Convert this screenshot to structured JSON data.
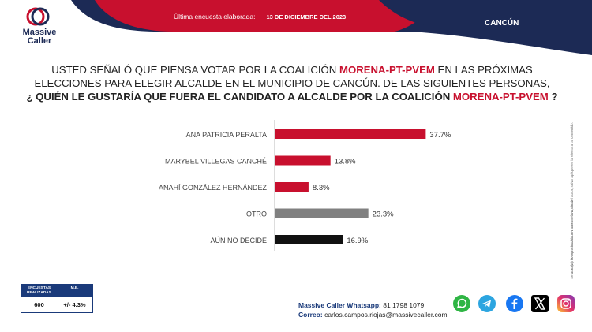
{
  "header": {
    "logo_line1": "Massive",
    "logo_line2": "Caller",
    "survey_label": "Última encuesta elaborada:",
    "survey_date": "13 DE DICIEMBRE DEL 2023",
    "city": "CANCÚN"
  },
  "question": {
    "line1_a": "USTED SEÑALÓ QUE PIENSA VOTAR POR LA COALICIÓN ",
    "line1_b": "MORENA-PT-PVEM",
    "line1_c": " EN LAS PRÓXIMAS",
    "line2": "ELECCIONES PARA ELEGIR ALCALDE EN EL MUNICIPIO DE CANCÚN. DE LAS SIGUIENTES PERSONAS,",
    "line3_a": "¿ QUIÉN LE GUSTARÍA QUE FUERA EL CANDIDATO A ALCALDE POR LA COALICIÓN ",
    "line3_b": "MORENA-PT-PVEM",
    "line3_c": " ?"
  },
  "side_note": {
    "line1": "D.R. (C) MASSIVE CALLER S.A DE C.V., 2023",
    "line2": "Se autoriza la reproducción sin hacer referencia del autor, salvo aplique en la electoral al contenido."
  },
  "chart_data": {
    "type": "bar",
    "orientation": "horizontal",
    "categories": [
      "ANA PATRICIA PERALTA",
      "MARYBEL VILLEGAS CANCHÉ",
      "ANAHÍ GONZÁLEZ HERNÁNDEZ",
      "OTRO",
      "AÚN NO DECIDE"
    ],
    "values": [
      37.7,
      13.8,
      8.3,
      23.3,
      16.9
    ],
    "value_labels": [
      "37.7%",
      "13.8%",
      "8.3%",
      "23.3%",
      "16.9%"
    ],
    "bar_colors": [
      "#c8102e",
      "#c8102e",
      "#c8102e",
      "#808080",
      "#111111"
    ],
    "xlim": [
      0,
      40
    ],
    "unit": "%"
  },
  "stats_table": {
    "col1_header": "ENCUESTAS REALIZADAS",
    "col2_header": "M.E.",
    "col1_value": "600",
    "col2_value": "+/- 4.3%"
  },
  "contact": {
    "whatsapp_label": "Massive Caller Whatsapp:",
    "whatsapp_number": "81 1798 1079",
    "email_label": "Correo:",
    "email_value": "carlos.campos.riojas@massivecaller.com"
  },
  "colors": {
    "accent_red": "#c8102e",
    "navy": "#1c2a55"
  },
  "social_icons": [
    "whatsapp-icon",
    "telegram-icon",
    "facebook-icon",
    "x-icon",
    "instagram-icon"
  ]
}
